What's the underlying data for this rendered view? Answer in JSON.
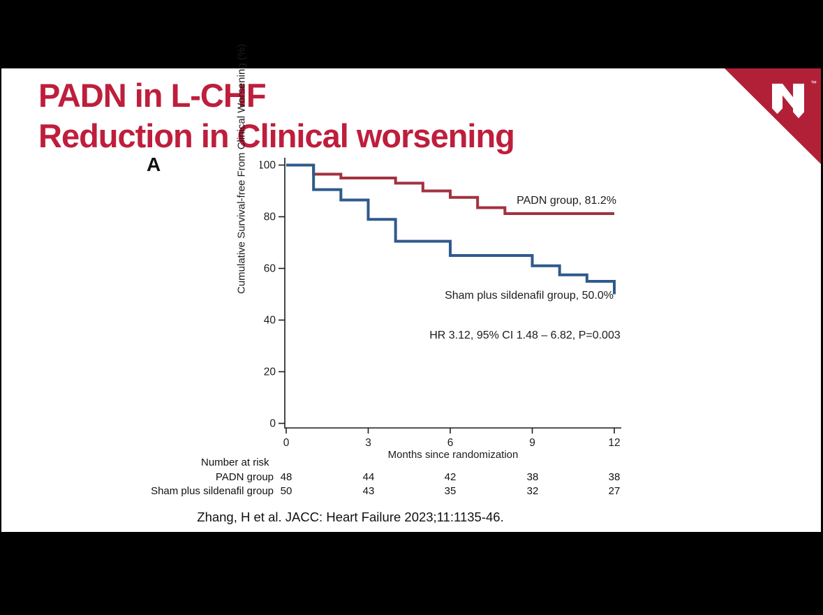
{
  "slide": {
    "title_line1": "PADN in L-CHF",
    "title_line2": "Reduction in Clinical worsening",
    "citation": "Zhang, H et al. JACC: Heart Failure 2023;11:1135-46.",
    "logo": {
      "name": "Nebraska Medicine N shield",
      "trademark": "™"
    }
  },
  "colors": {
    "title_red": "#BE1E3C",
    "logo_red": "#B22038",
    "padn_red": "#A23240",
    "sham_blue": "#2F5A8C",
    "background": "#000000",
    "slide_bg": "#FFFFFF",
    "axis_black": "#1c1c1c"
  },
  "chart_data": {
    "type": "line",
    "variant": "kaplan_meier_step",
    "panel_label": "A",
    "title": "",
    "xlabel": "Months since randomization",
    "ylabel": "Cumulative Survival-free From Clinical Worsening (%)",
    "xlim": [
      0,
      12
    ],
    "ylim": [
      0,
      100
    ],
    "x_ticks": [
      0,
      3,
      6,
      9,
      12
    ],
    "y_ticks": [
      0,
      20,
      40,
      60,
      80,
      100
    ],
    "grid": false,
    "legend_position": "inline-annotations",
    "series": [
      {
        "name": "PADN group",
        "color": "#A23240",
        "final_value_pct": 81.2,
        "points": [
          [
            0,
            100
          ],
          [
            1,
            96.5
          ],
          [
            2,
            95
          ],
          [
            4,
            93
          ],
          [
            5,
            90
          ],
          [
            6,
            87.5
          ],
          [
            7,
            83.5
          ],
          [
            8,
            81.2
          ],
          [
            12,
            81.2
          ]
        ]
      },
      {
        "name": "Sham plus sildenafil group",
        "color": "#2F5A8C",
        "final_value_pct": 50.0,
        "points": [
          [
            0,
            100
          ],
          [
            1,
            90.5
          ],
          [
            2,
            86.5
          ],
          [
            3,
            79
          ],
          [
            4,
            70.5
          ],
          [
            6,
            65
          ],
          [
            9,
            61
          ],
          [
            10,
            57.5
          ],
          [
            11,
            55
          ],
          [
            12,
            50
          ]
        ]
      }
    ],
    "annotations": {
      "padn_label": "PADN group, 81.2%",
      "sham_label": "Sham plus sildenafil group, 50.0%",
      "hr_text": "HR 3.12, 95% CI 1.48 – 6.82, P=0.003"
    },
    "risk_table": {
      "header": "Number at risk",
      "time_points": [
        0,
        3,
        6,
        9,
        12
      ],
      "rows": [
        {
          "label": "PADN group",
          "values": [
            "48",
            "44",
            "42",
            "38",
            "38"
          ]
        },
        {
          "label": "Sham plus sildenafil group",
          "values": [
            "50",
            "43",
            "35",
            "32",
            "27"
          ]
        }
      ]
    }
  }
}
